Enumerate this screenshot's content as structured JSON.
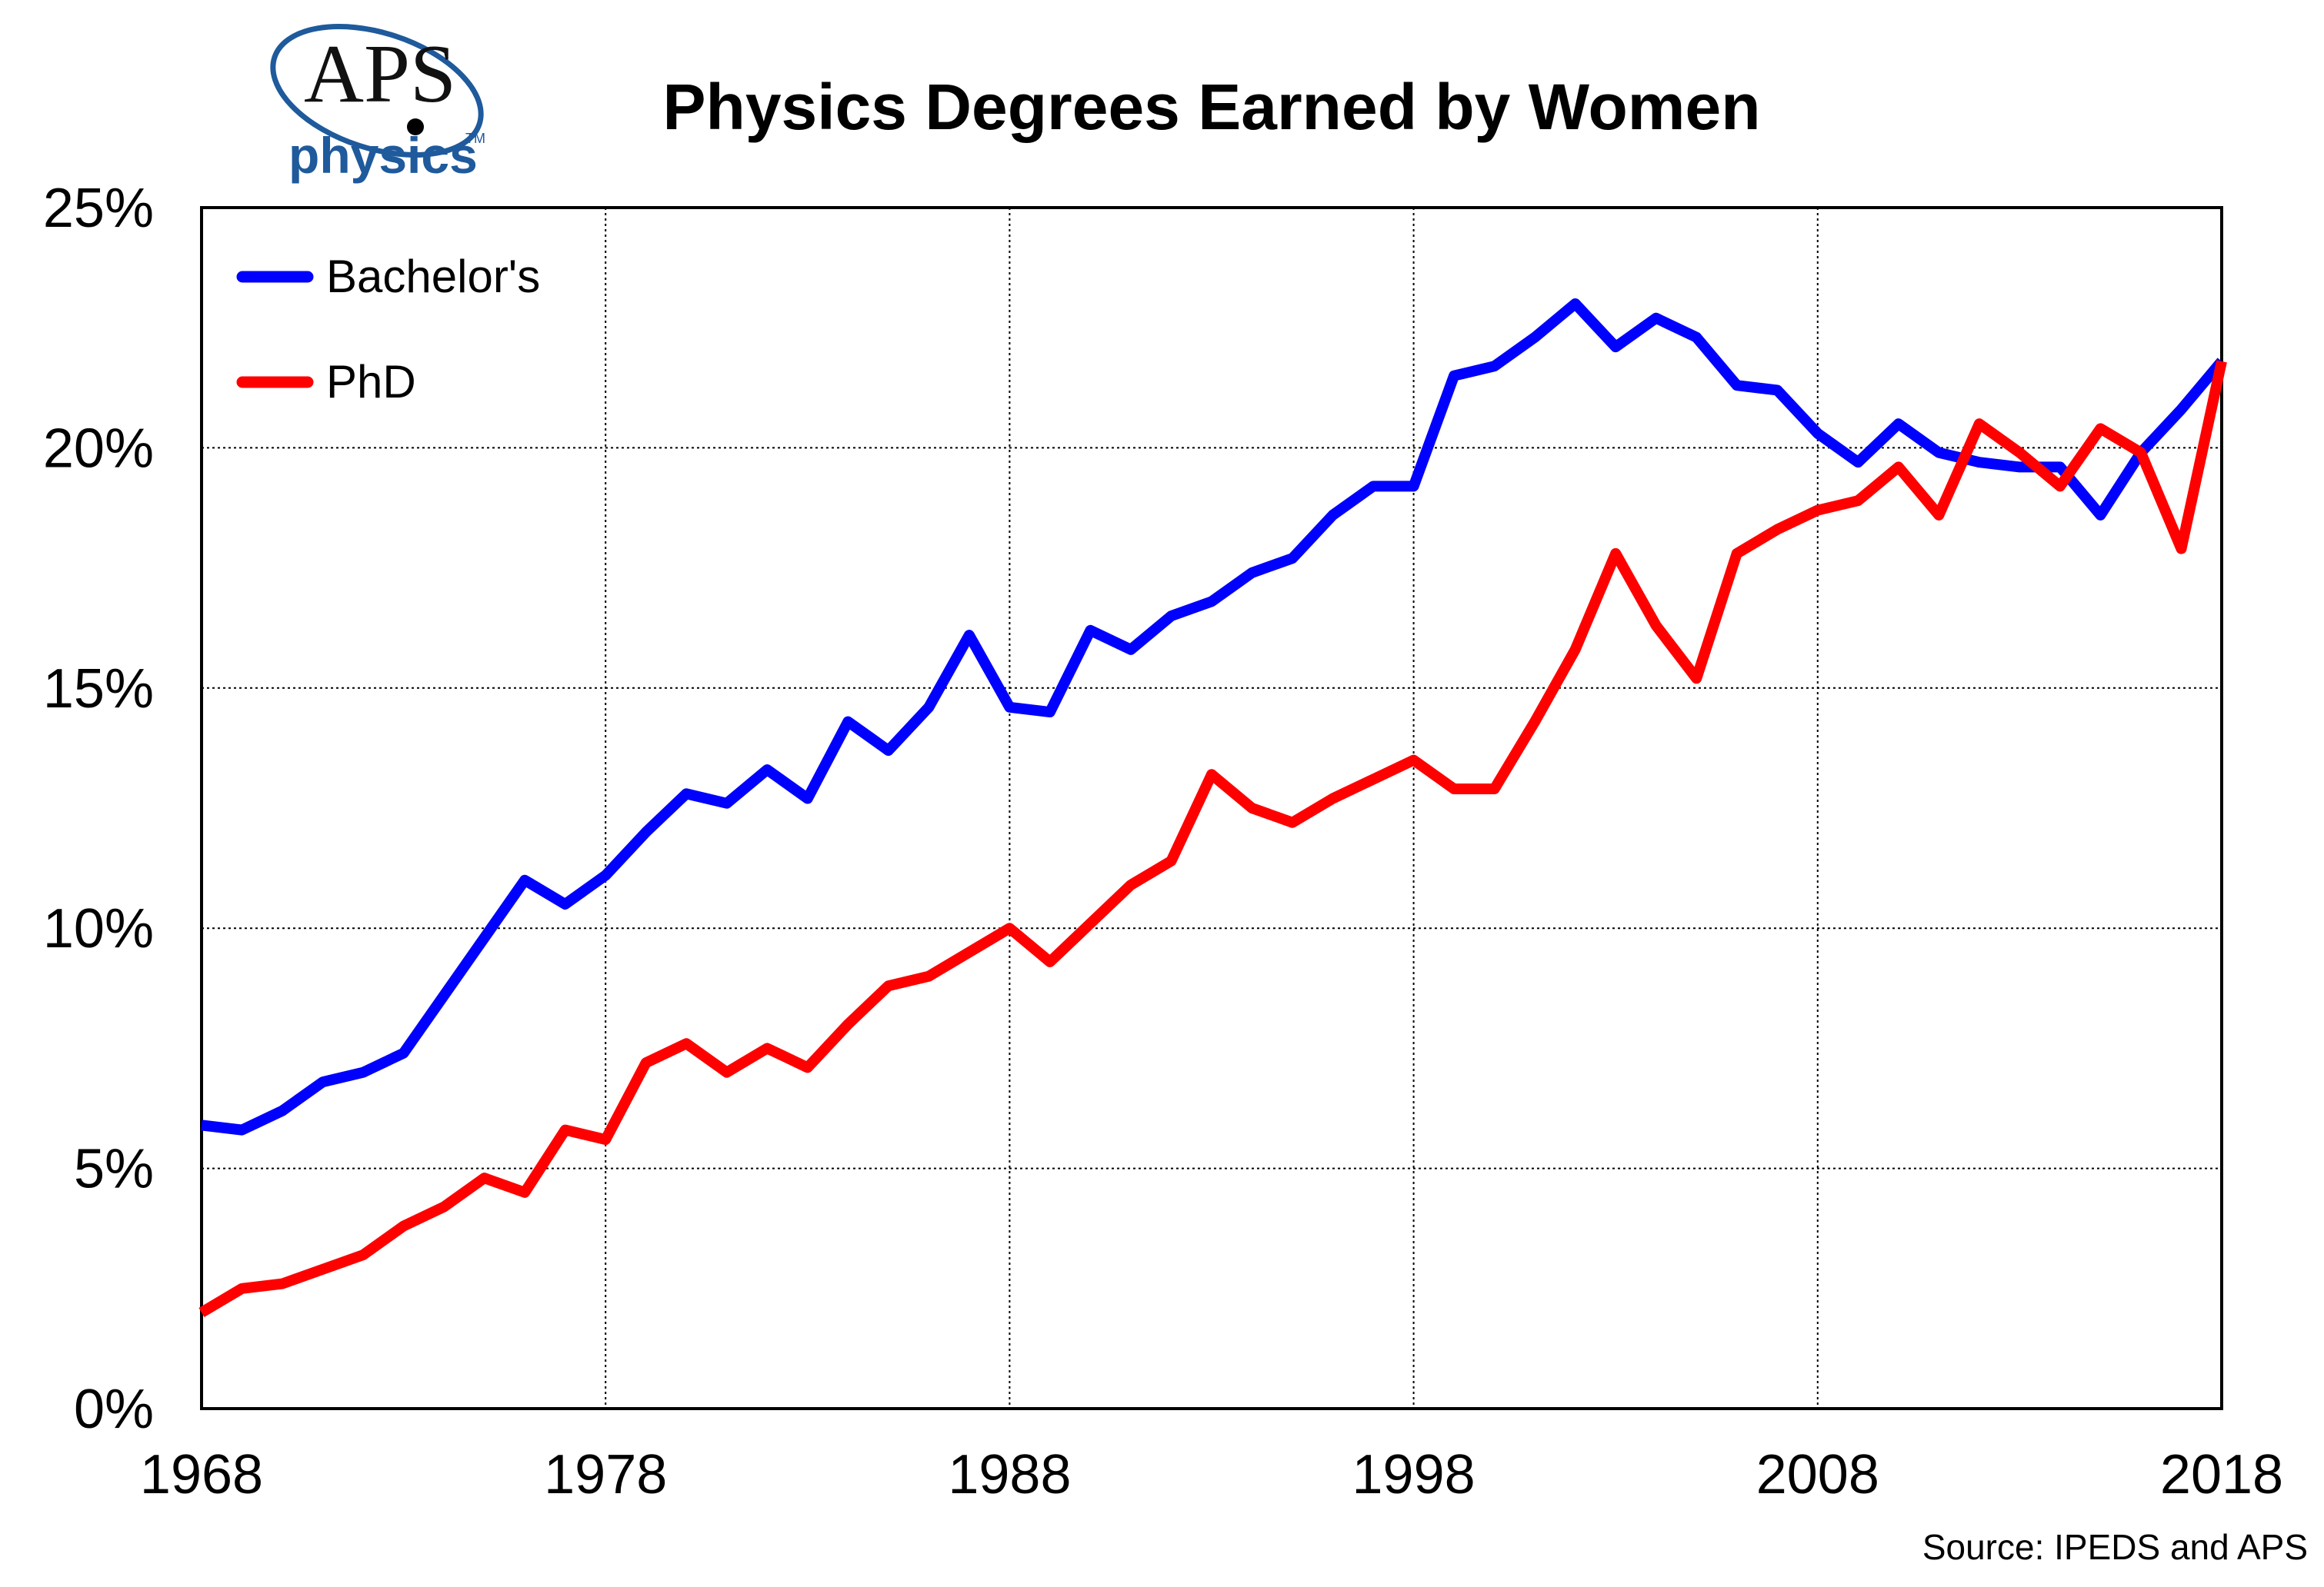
{
  "logo": {
    "brand": "APS",
    "sub": "physics",
    "tm": "TM"
  },
  "source": "Source: IPEDS and APS",
  "colors": {
    "bachelors": "#0000ff",
    "phd": "#ff0000",
    "logo_blue": "#1e5a9c"
  },
  "chart_data": {
    "type": "line",
    "title": "Physics Degrees Earned by Women",
    "xlabel": "",
    "ylabel": "",
    "xlim": [
      1968,
      2018
    ],
    "ylim": [
      0,
      25
    ],
    "x_ticks": [
      "1968",
      "1978",
      "1988",
      "1998",
      "2008",
      "2018"
    ],
    "y_ticks": [
      "0%",
      "5%",
      "10%",
      "15%",
      "20%",
      "25%"
    ],
    "grid": true,
    "legend_position": "top-left",
    "x": [
      1968,
      1969,
      1970,
      1971,
      1972,
      1973,
      1974,
      1975,
      1976,
      1977,
      1978,
      1979,
      1980,
      1981,
      1982,
      1983,
      1984,
      1985,
      1986,
      1987,
      1988,
      1989,
      1990,
      1991,
      1992,
      1993,
      1994,
      1995,
      1996,
      1997,
      1998,
      1999,
      2000,
      2001,
      2002,
      2003,
      2004,
      2005,
      2006,
      2007,
      2008,
      2009,
      2010,
      2011,
      2012,
      2013,
      2014,
      2015,
      2016,
      2017,
      2018
    ],
    "series": [
      {
        "name": "Bachelor's",
        "color": "#0000ff",
        "values": [
          5.9,
          5.8,
          6.2,
          6.8,
          7.0,
          7.4,
          8.6,
          9.8,
          11.0,
          10.5,
          11.1,
          12.0,
          12.8,
          12.6,
          13.3,
          12.7,
          14.3,
          13.7,
          14.6,
          16.1,
          14.6,
          14.5,
          16.2,
          15.8,
          16.5,
          16.8,
          17.4,
          17.7,
          18.6,
          19.2,
          19.2,
          21.5,
          21.7,
          22.3,
          23.0,
          22.1,
          22.7,
          22.3,
          21.3,
          21.2,
          20.3,
          19.7,
          20.5,
          19.9,
          19.7,
          19.6,
          19.6,
          18.6,
          19.9,
          20.8,
          21.8
        ]
      },
      {
        "name": "PhD",
        "color": "#ff0000",
        "values": [
          2.0,
          2.5,
          2.6,
          2.9,
          3.2,
          3.8,
          4.2,
          4.8,
          4.5,
          5.8,
          5.6,
          7.2,
          7.6,
          7.0,
          7.5,
          7.1,
          8.0,
          8.8,
          9.0,
          9.5,
          10.0,
          9.3,
          10.1,
          10.9,
          11.4,
          13.2,
          12.5,
          12.2,
          12.7,
          13.1,
          13.5,
          12.9,
          12.9,
          14.3,
          15.8,
          17.8,
          16.3,
          15.2,
          17.8,
          18.3,
          18.7,
          18.9,
          19.6,
          18.6,
          20.5,
          19.9,
          19.2,
          20.4,
          19.9,
          17.9,
          21.8
        ]
      }
    ]
  }
}
